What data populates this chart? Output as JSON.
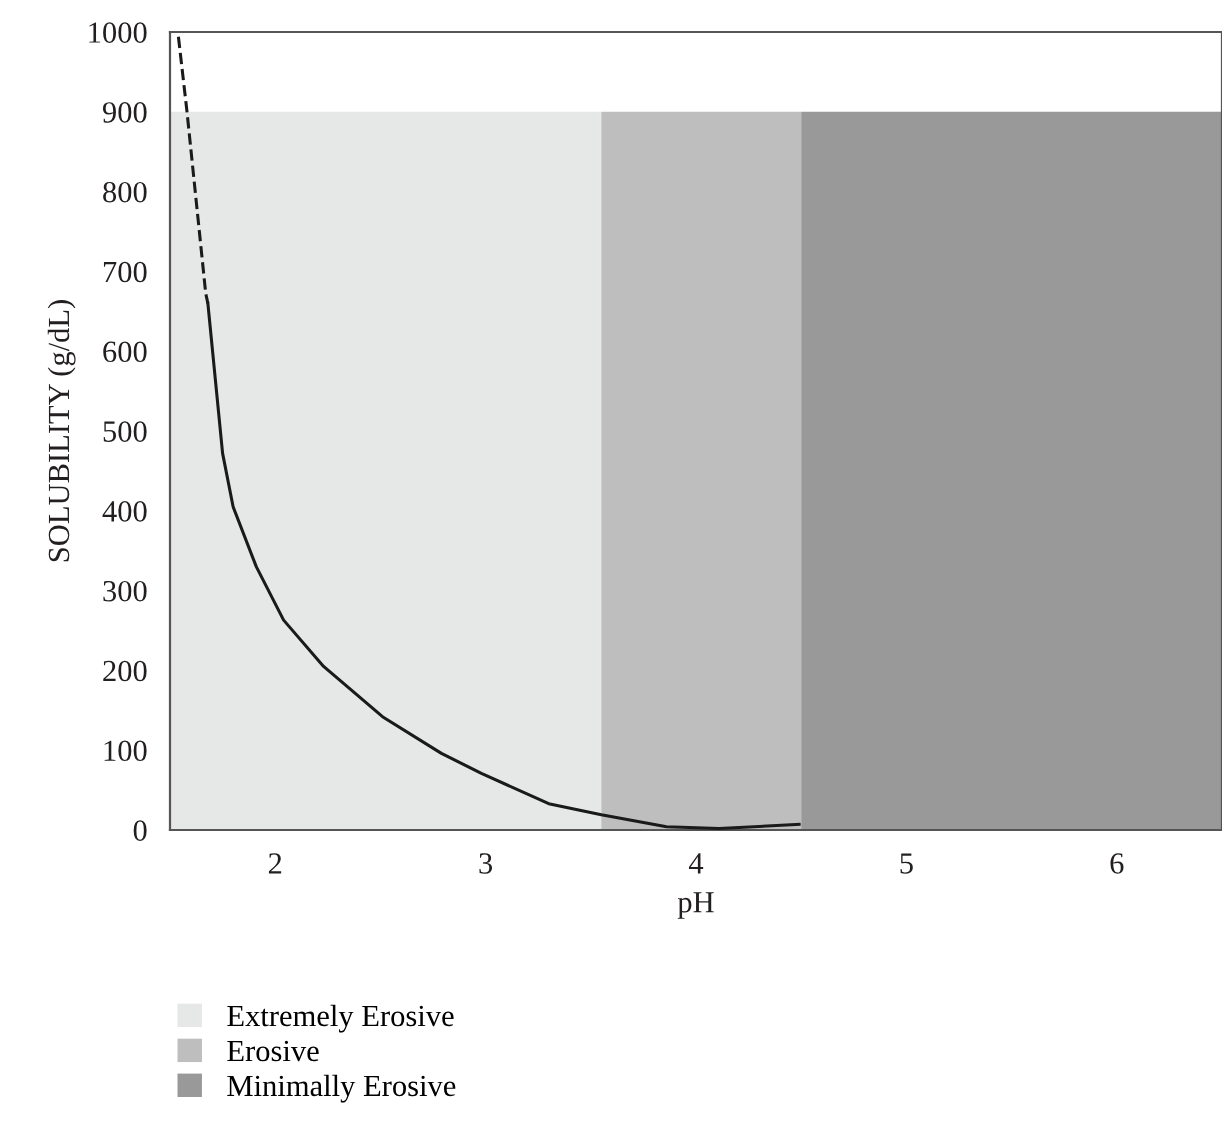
{
  "chart_data": {
    "type": "line",
    "xlabel": "pH",
    "ylabel": "SOLUBILITY (g/dL)",
    "xlim": [
      1.5,
      6.5
    ],
    "xticks": [
      2,
      3,
      4,
      5,
      6
    ],
    "ylim": [
      0,
      1000
    ],
    "yticks": [
      0,
      100,
      200,
      300,
      400,
      500,
      600,
      700,
      800,
      900,
      1000
    ],
    "grid": false,
    "legend": "bottom left",
    "line_style": "solid",
    "marker": "none",
    "series": [
      {
        "name": "Extremely Erosive",
        "type": "area",
        "color": "#e6e7e7",
        "x": [
          1.5,
          3.55
        ],
        "values": [
          900,
          900
        ]
      },
      {
        "name": "Erosive",
        "type": "area",
        "color": "#bebebe",
        "x": [
          3.55,
          4.5
        ],
        "values": [
          900,
          900
        ]
      },
      {
        "name": "Minimally Erosive",
        "type": "area",
        "color": "#999999",
        "x": [
          4.5,
          6.5
        ],
        "values": [
          900,
          900
        ]
      },
      {
        "color": "#1a1a1a",
        "line_style": "dashed",
        "x": [
          1.54,
          1.58,
          1.67,
          1.68
        ],
        "values": [
          994,
          902,
          672,
          660
        ]
      },
      {
        "color": "#1a1a1a",
        "x": [
          1.68,
          1.75,
          1.8,
          1.91,
          2.04,
          2.23,
          2.51,
          2.79,
          2.98,
          3.3,
          3.55,
          3.86,
          4.11,
          4.49
        ],
        "values": [
          660,
          472,
          405,
          330,
          263,
          205,
          142,
          96,
          71,
          33,
          19,
          4,
          2,
          7
        ]
      }
    ]
  }
}
